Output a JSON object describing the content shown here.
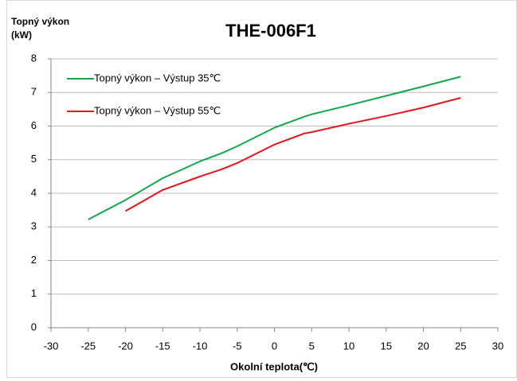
{
  "chart_data": {
    "type": "line",
    "title": "THE-006F1",
    "y_label": [
      "Topný výkon",
      "(kW)"
    ],
    "x_label": "Okolní teplota(℃)",
    "xlim": [
      -30,
      30
    ],
    "xticks": [
      -30,
      -25,
      -20,
      -15,
      -10,
      -5,
      0,
      5,
      10,
      15,
      20,
      25,
      30
    ],
    "ylim": [
      0,
      8
    ],
    "yticks": [
      0,
      1,
      2,
      3,
      4,
      5,
      6,
      7,
      8
    ],
    "grid": true,
    "legend": "upper left",
    "series": [
      {
        "name": "Topný výkon – Výstup 35℃",
        "color": "#12a84a",
        "x": [
          -25,
          -20,
          -15,
          -10,
          -7,
          -5,
          0,
          4,
          5,
          10,
          15,
          20,
          25
        ],
        "values": [
          3.22,
          3.8,
          4.45,
          4.95,
          5.2,
          5.4,
          5.95,
          6.28,
          6.35,
          6.62,
          6.9,
          7.18,
          7.47
        ]
      },
      {
        "name": "Topný výkon – Výstup 55℃",
        "color": "#e8141c",
        "x": [
          -20,
          -15,
          -10,
          -7,
          -5,
          0,
          4,
          5,
          10,
          15,
          20,
          25
        ],
        "values": [
          3.47,
          4.1,
          4.5,
          4.72,
          4.9,
          5.45,
          5.78,
          5.82,
          6.07,
          6.3,
          6.55,
          6.84
        ]
      }
    ]
  }
}
